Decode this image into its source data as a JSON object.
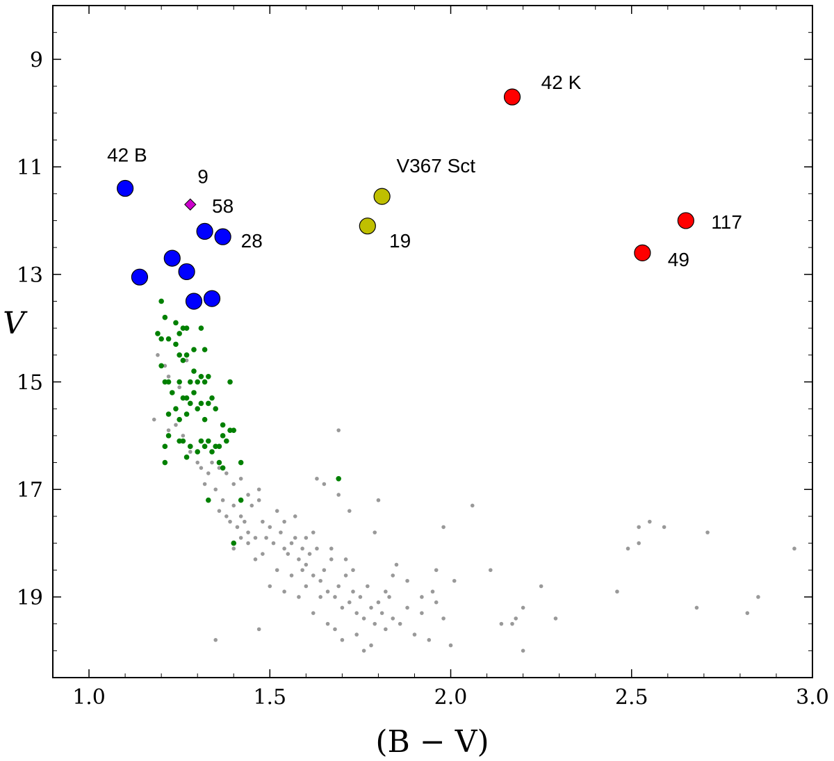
{
  "chart_data": {
    "type": "scatter",
    "title": "",
    "xlabel": "(B − V)",
    "ylabel": "V",
    "xlim": [
      0.9,
      3.0
    ],
    "ylim": [
      20.5,
      8.0
    ],
    "y_inverted": true,
    "grid": false,
    "x_ticks": [
      "1.0",
      "1.5",
      "2.0",
      "2.5",
      "3.0"
    ],
    "y_ticks": [
      "9",
      "11",
      "13",
      "15",
      "17",
      "19"
    ],
    "colors": {
      "gray": "#999999",
      "green": "#008000",
      "blue": "#0000ff",
      "yellow": "#bfbf00",
      "red": "#ff0000",
      "magenta": "#cc00cc"
    },
    "series": [
      {
        "name": "field stars",
        "marker": "small-dot",
        "color": "gray",
        "points": [
          [
            1.19,
            14.5
          ],
          [
            1.21,
            14.7
          ],
          [
            1.22,
            14.9
          ],
          [
            1.18,
            15.7
          ],
          [
            1.22,
            15.9
          ],
          [
            1.25,
            14.5
          ],
          [
            1.27,
            14.6
          ],
          [
            1.25,
            15.1
          ],
          [
            1.26,
            15.3
          ],
          [
            1.28,
            15.4
          ],
          [
            1.24,
            15.8
          ],
          [
            1.26,
            16.0
          ],
          [
            1.28,
            16.3
          ],
          [
            1.3,
            16.5
          ],
          [
            1.31,
            16.6
          ],
          [
            1.33,
            16.7
          ],
          [
            1.32,
            16.9
          ],
          [
            1.34,
            16.5
          ],
          [
            1.36,
            16.6
          ],
          [
            1.38,
            16.7
          ],
          [
            1.35,
            17.0
          ],
          [
            1.37,
            17.2
          ],
          [
            1.36,
            17.4
          ],
          [
            1.38,
            17.5
          ],
          [
            1.39,
            17.6
          ],
          [
            1.4,
            17.3
          ],
          [
            1.42,
            17.5
          ],
          [
            1.41,
            17.7
          ],
          [
            1.43,
            17.6
          ],
          [
            1.44,
            17.8
          ],
          [
            1.46,
            17.9
          ],
          [
            1.45,
            17.3
          ],
          [
            1.47,
            17.2
          ],
          [
            1.48,
            17.6
          ],
          [
            1.5,
            17.7
          ],
          [
            1.49,
            17.9
          ],
          [
            1.51,
            18.0
          ],
          [
            1.52,
            17.4
          ],
          [
            1.53,
            17.8
          ],
          [
            1.54,
            18.1
          ],
          [
            1.55,
            18.2
          ],
          [
            1.56,
            18.0
          ],
          [
            1.57,
            17.9
          ],
          [
            1.58,
            18.3
          ],
          [
            1.59,
            18.5
          ],
          [
            1.6,
            18.4
          ],
          [
            1.61,
            18.2
          ],
          [
            1.62,
            18.6
          ],
          [
            1.63,
            18.1
          ],
          [
            1.64,
            18.7
          ],
          [
            1.65,
            18.5
          ],
          [
            1.66,
            18.9
          ],
          [
            1.67,
            18.3
          ],
          [
            1.68,
            19.0
          ],
          [
            1.69,
            18.8
          ],
          [
            1.7,
            19.2
          ],
          [
            1.71,
            18.6
          ],
          [
            1.72,
            19.1
          ],
          [
            1.73,
            18.9
          ],
          [
            1.74,
            19.3
          ],
          [
            1.75,
            19.0
          ],
          [
            1.76,
            19.4
          ],
          [
            1.77,
            18.8
          ],
          [
            1.78,
            19.2
          ],
          [
            1.79,
            19.5
          ],
          [
            1.8,
            19.1
          ],
          [
            1.81,
            19.3
          ],
          [
            1.82,
            19.6
          ],
          [
            1.83,
            19.0
          ],
          [
            1.84,
            19.4
          ],
          [
            1.86,
            19.5
          ],
          [
            1.88,
            19.2
          ],
          [
            1.9,
            19.7
          ],
          [
            1.92,
            19.3
          ],
          [
            1.94,
            19.8
          ],
          [
            1.96,
            19.1
          ],
          [
            1.98,
            19.4
          ],
          [
            2.0,
            19.9
          ],
          [
            1.56,
            18.6
          ],
          [
            1.6,
            18.8
          ],
          [
            1.64,
            19.0
          ],
          [
            1.62,
            19.3
          ],
          [
            1.66,
            19.5
          ],
          [
            1.68,
            19.6
          ],
          [
            1.7,
            19.8
          ],
          [
            1.74,
            19.7
          ],
          [
            1.78,
            19.9
          ],
          [
            1.58,
            19.0
          ],
          [
            1.54,
            18.9
          ],
          [
            1.5,
            18.8
          ],
          [
            1.52,
            18.5
          ],
          [
            1.46,
            18.3
          ],
          [
            1.44,
            18.0
          ],
          [
            1.48,
            18.2
          ],
          [
            1.42,
            17.9
          ],
          [
            1.4,
            18.1
          ],
          [
            1.69,
            15.9
          ],
          [
            1.63,
            16.8
          ],
          [
            1.65,
            16.9
          ],
          [
            1.69,
            17.1
          ],
          [
            1.8,
            17.2
          ],
          [
            1.72,
            17.4
          ],
          [
            1.79,
            17.8
          ],
          [
            2.06,
            17.3
          ],
          [
            1.98,
            17.7
          ],
          [
            2.11,
            18.5
          ],
          [
            2.25,
            18.8
          ],
          [
            2.2,
            19.2
          ],
          [
            2.29,
            19.4
          ],
          [
            2.17,
            19.5
          ],
          [
            2.2,
            20.0
          ],
          [
            1.76,
            20.0
          ],
          [
            1.47,
            19.6
          ],
          [
            1.35,
            19.8
          ],
          [
            2.49,
            18.1
          ],
          [
            2.52,
            18.0
          ],
          [
            2.52,
            17.7
          ],
          [
            2.55,
            17.6
          ],
          [
            2.59,
            17.7
          ],
          [
            2.71,
            17.8
          ],
          [
            2.95,
            18.1
          ],
          [
            2.46,
            18.9
          ],
          [
            2.68,
            19.2
          ],
          [
            2.82,
            19.3
          ],
          [
            2.85,
            19.0
          ],
          [
            2.18,
            19.4
          ],
          [
            2.14,
            19.5
          ],
          [
            1.92,
            19.0
          ],
          [
            1.95,
            18.9
          ],
          [
            2.01,
            18.7
          ],
          [
            1.96,
            18.5
          ],
          [
            1.84,
            18.6
          ],
          [
            1.88,
            18.7
          ],
          [
            1.85,
            18.4
          ],
          [
            1.82,
            18.9
          ],
          [
            1.73,
            18.5
          ],
          [
            1.71,
            18.3
          ],
          [
            1.67,
            18.1
          ],
          [
            1.59,
            18.1
          ],
          [
            1.57,
            17.5
          ],
          [
            1.54,
            17.6
          ],
          [
            1.6,
            17.9
          ],
          [
            1.62,
            17.8
          ],
          [
            1.44,
            17.1
          ],
          [
            1.42,
            16.8
          ],
          [
            1.4,
            16.9
          ],
          [
            1.47,
            17.0
          ]
        ]
      },
      {
        "name": "cluster members",
        "marker": "dot",
        "color": "green",
        "points": [
          [
            1.2,
            13.5
          ],
          [
            1.19,
            14.1
          ],
          [
            1.2,
            14.7
          ],
          [
            1.2,
            14.2
          ],
          [
            1.21,
            13.8
          ],
          [
            1.22,
            14.2
          ],
          [
            1.24,
            13.9
          ],
          [
            1.25,
            14.1
          ],
          [
            1.26,
            14.0
          ],
          [
            1.27,
            14.0
          ],
          [
            1.24,
            14.3
          ],
          [
            1.25,
            14.5
          ],
          [
            1.26,
            14.6
          ],
          [
            1.27,
            14.5
          ],
          [
            1.29,
            14.4
          ],
          [
            1.31,
            14.0
          ],
          [
            1.32,
            14.4
          ],
          [
            1.21,
            15.0
          ],
          [
            1.22,
            15.0
          ],
          [
            1.23,
            15.2
          ],
          [
            1.25,
            15.0
          ],
          [
            1.26,
            15.3
          ],
          [
            1.27,
            15.3
          ],
          [
            1.28,
            15.0
          ],
          [
            1.29,
            14.8
          ],
          [
            1.3,
            15.0
          ],
          [
            1.31,
            14.9
          ],
          [
            1.32,
            15.0
          ],
          [
            1.33,
            14.9
          ],
          [
            1.34,
            15.3
          ],
          [
            1.24,
            15.5
          ],
          [
            1.25,
            15.7
          ],
          [
            1.22,
            15.6
          ],
          [
            1.27,
            15.6
          ],
          [
            1.28,
            15.4
          ],
          [
            1.29,
            15.2
          ],
          [
            1.3,
            15.5
          ],
          [
            1.31,
            15.4
          ],
          [
            1.32,
            15.7
          ],
          [
            1.33,
            15.4
          ],
          [
            1.35,
            15.5
          ],
          [
            1.37,
            15.8
          ],
          [
            1.39,
            15.0
          ],
          [
            1.21,
            16.2
          ],
          [
            1.22,
            16.0
          ],
          [
            1.25,
            16.1
          ],
          [
            1.26,
            16.1
          ],
          [
            1.27,
            16.4
          ],
          [
            1.28,
            16.2
          ],
          [
            1.3,
            16.3
          ],
          [
            1.31,
            16.1
          ],
          [
            1.32,
            16.2
          ],
          [
            1.33,
            16.1
          ],
          [
            1.34,
            16.3
          ],
          [
            1.35,
            16.2
          ],
          [
            1.36,
            16.2
          ],
          [
            1.37,
            16.0
          ],
          [
            1.38,
            16.1
          ],
          [
            1.39,
            15.9
          ],
          [
            1.4,
            15.9
          ],
          [
            1.36,
            16.5
          ],
          [
            1.37,
            16.6
          ],
          [
            1.42,
            16.5
          ],
          [
            1.21,
            16.5
          ],
          [
            1.33,
            17.2
          ],
          [
            1.42,
            17.2
          ],
          [
            1.4,
            18.0
          ],
          [
            1.69,
            16.8
          ]
        ]
      },
      {
        "name": "blue stars",
        "marker": "large-circle",
        "color": "blue",
        "points": [
          [
            1.1,
            11.4
          ],
          [
            1.32,
            12.2
          ],
          [
            1.37,
            12.3
          ],
          [
            1.23,
            12.7
          ],
          [
            1.27,
            12.95
          ],
          [
            1.14,
            13.05
          ],
          [
            1.29,
            13.5
          ],
          [
            1.34,
            13.45
          ]
        ]
      },
      {
        "name": "V367 Sct stars",
        "marker": "large-circle",
        "color": "yellow",
        "points": [
          [
            1.81,
            11.55
          ],
          [
            1.77,
            12.1
          ]
        ]
      },
      {
        "name": "red stars",
        "marker": "large-circle",
        "color": "red",
        "points": [
          [
            2.17,
            9.7
          ],
          [
            2.65,
            12.0
          ],
          [
            2.53,
            12.6
          ]
        ]
      },
      {
        "name": "star 9",
        "marker": "diamond",
        "color": "magenta",
        "points": [
          [
            1.28,
            11.7
          ]
        ]
      }
    ],
    "annotations": [
      {
        "text": "42 K",
        "x": 2.25,
        "y": 9.55
      },
      {
        "text": "42 B",
        "x": 1.05,
        "y": 10.9
      },
      {
        "text": "V367 Sct",
        "x": 1.85,
        "y": 11.1
      },
      {
        "text": "9",
        "x": 1.3,
        "y": 11.3
      },
      {
        "text": "58",
        "x": 1.34,
        "y": 11.85
      },
      {
        "text": "28",
        "x": 1.42,
        "y": 12.5
      },
      {
        "text": "19",
        "x": 1.83,
        "y": 12.5
      },
      {
        "text": "117",
        "x": 2.72,
        "y": 12.15
      },
      {
        "text": "49",
        "x": 2.6,
        "y": 12.85
      }
    ]
  }
}
